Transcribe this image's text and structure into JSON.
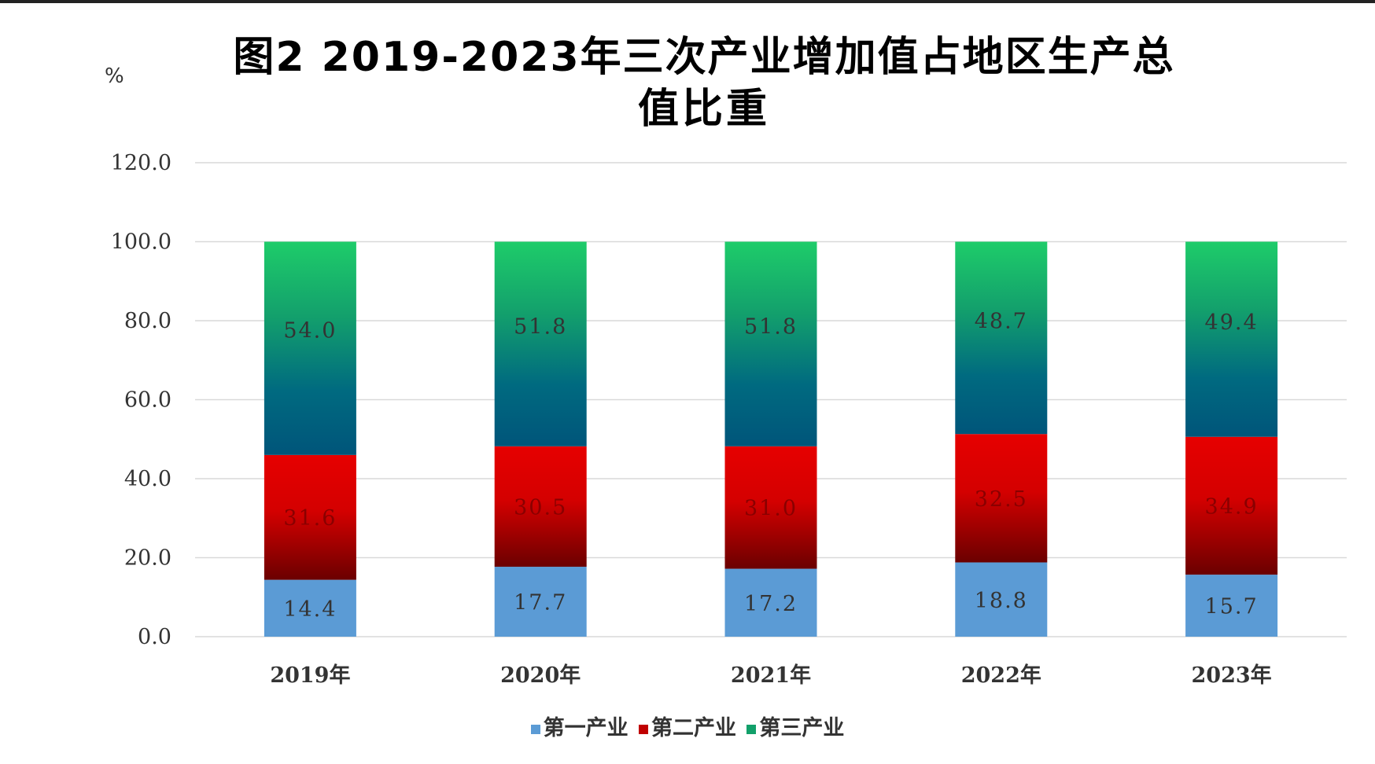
{
  "title_line1": "图2  2019-2023年三次产业增加值占地区生产总",
  "title_line2": "值比重",
  "unit_label": "%",
  "colors": {
    "primary": "#5b9bd5",
    "secondary_top": "#e60000",
    "secondary_bottom": "#6b0000",
    "tertiary_top": "#1ecc6a",
    "tertiary_bottom": "#005a80",
    "grid": "#d9d9d9",
    "text": "#333333"
  },
  "chart_data": {
    "type": "bar",
    "stacked": true,
    "categories": [
      "2019年",
      "2020年",
      "2021年",
      "2022年",
      "2023年"
    ],
    "series": [
      {
        "name": "第一产业",
        "values": [
          14.4,
          17.7,
          17.2,
          18.8,
          15.7
        ],
        "labels": [
          "14.4",
          "17.7",
          "17.2",
          "18.8",
          "15.7"
        ]
      },
      {
        "name": "第二产业",
        "values": [
          31.6,
          30.5,
          31.0,
          32.5,
          34.9
        ],
        "labels": [
          "31.6",
          "30.5",
          "31.0",
          "32.5",
          "34.9"
        ]
      },
      {
        "name": "第三产业",
        "values": [
          54.0,
          51.8,
          51.8,
          48.7,
          49.4
        ],
        "labels": [
          "54.0",
          "51.8",
          "51.8",
          "48.7",
          "49.4"
        ]
      }
    ],
    "yticks": [
      "0.0",
      "20.0",
      "40.0",
      "60.0",
      "80.0",
      "100.0",
      "120.0"
    ],
    "ylim": [
      0,
      120
    ],
    "grid": true,
    "legend_position": "bottom"
  }
}
